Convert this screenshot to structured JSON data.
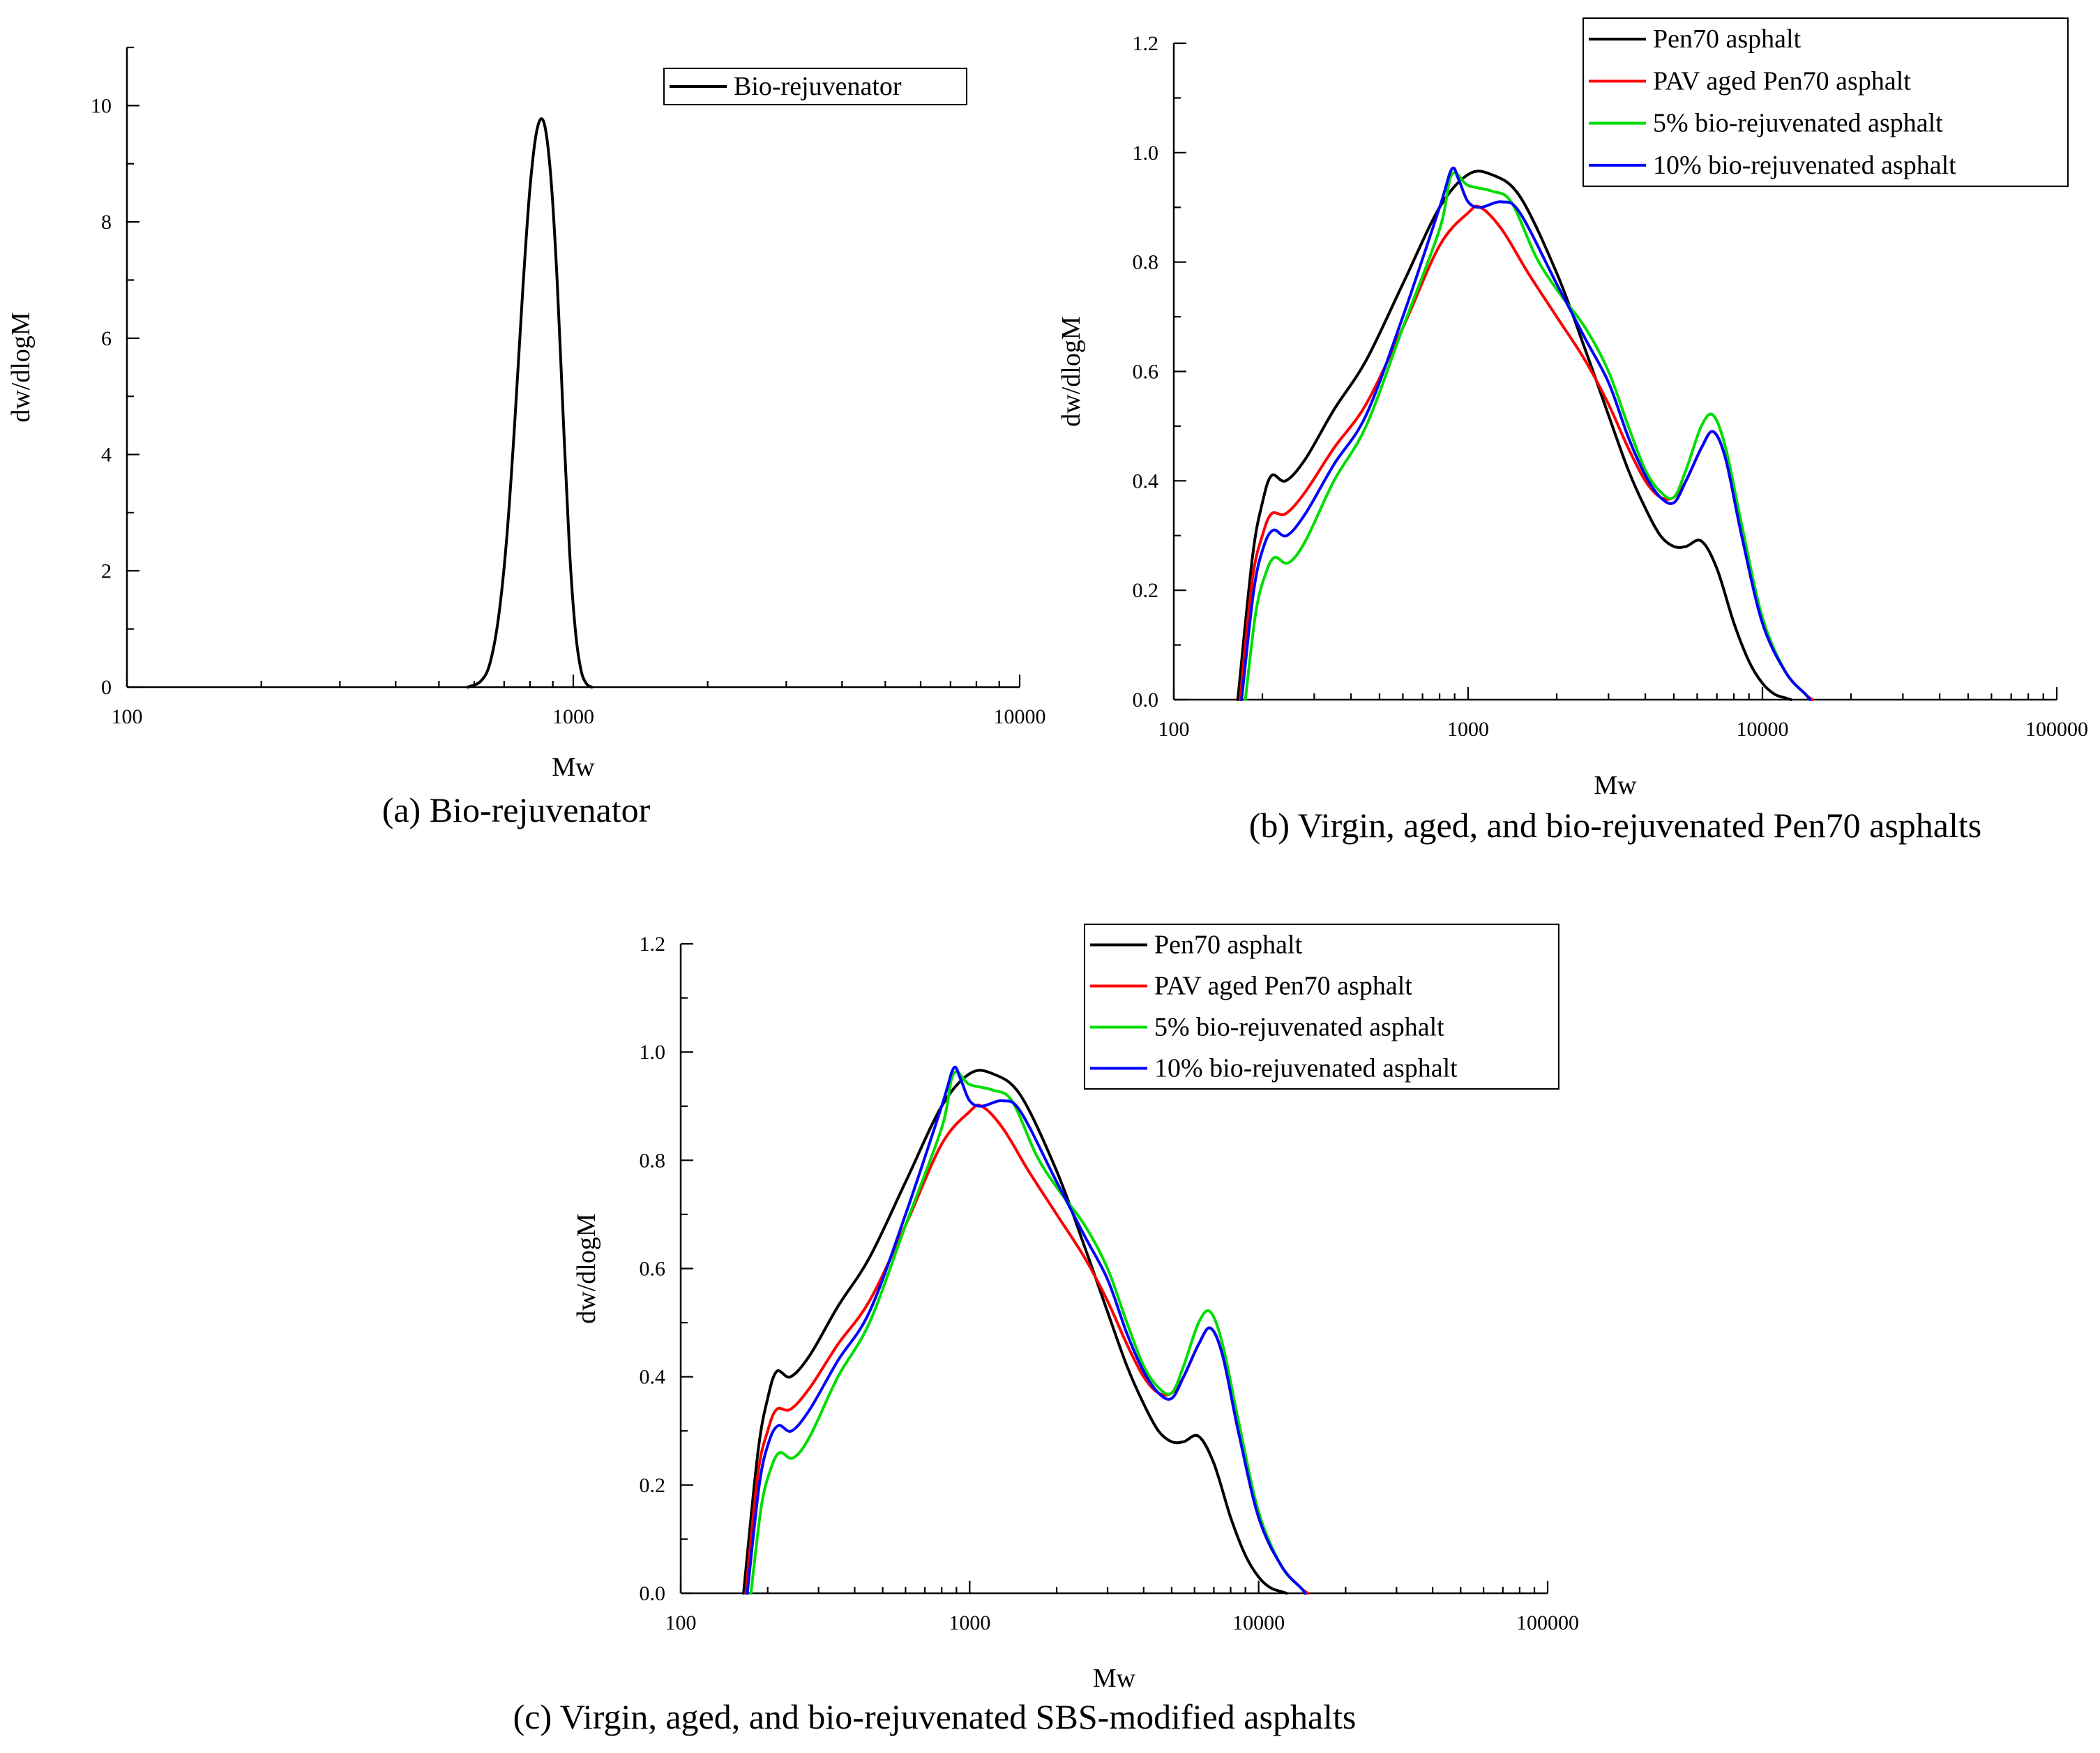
{
  "chart_data": [
    {
      "id": "a",
      "type": "line",
      "caption": "(a)  Bio-rejuvenator",
      "xlabel": "Mw",
      "ylabel": "dw/dlogM",
      "xscale": "log",
      "xlim": [
        100,
        10000
      ],
      "ylim": [
        0,
        11
      ],
      "xticks": [
        100,
        1000,
        10000
      ],
      "xtick_labels": [
        "100",
        "1000",
        "10000"
      ],
      "yticks": [
        0,
        2,
        4,
        6,
        8,
        10
      ],
      "ytick_labels": [
        "0",
        "2",
        "4",
        "6",
        "8",
        "10"
      ],
      "legend_position": "top-right",
      "series": [
        {
          "name": "Bio-rejuvenator",
          "color": "#000000",
          "x": [
            580,
            620,
            650,
            680,
            710,
            740,
            770,
            800,
            830,
            860,
            890,
            920,
            950,
            980,
            1010,
            1040,
            1070,
            1100
          ],
          "y": [
            0,
            0.1,
            0.4,
            1.2,
            2.6,
            4.6,
            6.8,
            8.6,
            9.6,
            9.7,
            8.8,
            7.0,
            4.6,
            2.4,
            1.0,
            0.3,
            0.06,
            0
          ]
        }
      ]
    },
    {
      "id": "b",
      "type": "line",
      "caption": "(b) Virgin, aged, and bio-rejuvenated Pen70 asphalts",
      "xlabel": "Mw",
      "ylabel": "dw/dlogM",
      "xscale": "log",
      "xlim": [
        100,
        100000
      ],
      "ylim": [
        0,
        1.2
      ],
      "xticks": [
        100,
        1000,
        10000,
        100000
      ],
      "xtick_labels": [
        "100",
        "1000",
        "10000",
        "100000"
      ],
      "yticks": [
        0,
        0.2,
        0.4,
        0.6,
        0.8,
        1.0,
        1.2
      ],
      "ytick_labels": [
        "0.0",
        "0.2",
        "0.4",
        "0.6",
        "0.8",
        "1.0",
        "1.2"
      ],
      "legend_position": "top-right",
      "series": [
        {
          "name": "Pen70 asphalt",
          "color": "#000000",
          "x": [
            165,
            185,
            200,
            215,
            240,
            280,
            350,
            450,
            600,
            800,
            1000,
            1200,
            1500,
            2000,
            2500,
            3000,
            3500,
            4000,
            4500,
            5000,
            5500,
            6200,
            7000,
            8000,
            9000,
            10000,
            11000,
            12000,
            12500
          ],
          "y": [
            0,
            0.26,
            0.36,
            0.41,
            0.4,
            0.44,
            0.53,
            0.62,
            0.76,
            0.9,
            0.96,
            0.96,
            0.92,
            0.78,
            0.64,
            0.52,
            0.42,
            0.35,
            0.3,
            0.28,
            0.28,
            0.29,
            0.24,
            0.14,
            0.07,
            0.03,
            0.01,
            0.003,
            0
          ]
        },
        {
          "name": "PAV aged Pen70 asphalt",
          "color": "#ff0000",
          "x": [
            168,
            185,
            200,
            215,
            240,
            280,
            350,
            450,
            600,
            800,
            1000,
            1100,
            1300,
            1600,
            2000,
            2500,
            3000,
            3500,
            4000,
            4500,
            5000,
            5500,
            6200,
            6800,
            7500,
            8500,
            10000,
            12000,
            14000,
            14800
          ],
          "y": [
            0,
            0.22,
            0.3,
            0.34,
            0.34,
            0.38,
            0.46,
            0.54,
            0.68,
            0.83,
            0.89,
            0.9,
            0.86,
            0.78,
            0.7,
            0.62,
            0.54,
            0.46,
            0.4,
            0.37,
            0.37,
            0.4,
            0.46,
            0.49,
            0.44,
            0.3,
            0.14,
            0.05,
            0.01,
            0
          ]
        },
        {
          "name": "5% bio-rejuvenated asphalt",
          "color": "#00dd00",
          "x": [
            175,
            190,
            205,
            220,
            245,
            280,
            350,
            450,
            600,
            800,
            880,
            1000,
            1200,
            1400,
            1700,
            2000,
            2500,
            3000,
            3500,
            4000,
            4500,
            5000,
            5500,
            6200,
            6800,
            7500,
            8500,
            10000,
            12000,
            14000,
            14500
          ],
          "y": [
            0,
            0.16,
            0.23,
            0.26,
            0.25,
            0.29,
            0.4,
            0.5,
            0.68,
            0.86,
            0.96,
            0.94,
            0.93,
            0.91,
            0.81,
            0.75,
            0.68,
            0.6,
            0.5,
            0.42,
            0.38,
            0.37,
            0.42,
            0.5,
            0.52,
            0.46,
            0.32,
            0.15,
            0.05,
            0.01,
            0
          ]
        },
        {
          "name": "10% bio-rejuvenated asphalt",
          "color": "#0000ff",
          "x": [
            170,
            187,
            202,
            218,
            242,
            280,
            350,
            450,
            600,
            800,
            880,
            930,
            1000,
            1100,
            1300,
            1500,
            2000,
            2500,
            3000,
            3500,
            4000,
            4500,
            5000,
            5500,
            6200,
            6800,
            7500,
            8500,
            10000,
            12000,
            14000,
            14500
          ],
          "y": [
            0,
            0.2,
            0.28,
            0.31,
            0.3,
            0.34,
            0.43,
            0.52,
            0.7,
            0.9,
            0.97,
            0.95,
            0.91,
            0.9,
            0.91,
            0.89,
            0.76,
            0.66,
            0.58,
            0.48,
            0.41,
            0.37,
            0.36,
            0.4,
            0.46,
            0.49,
            0.44,
            0.3,
            0.14,
            0.05,
            0.01,
            0
          ]
        }
      ]
    },
    {
      "id": "c",
      "type": "line",
      "caption": "(c) Virgin, aged, and bio-rejuvenated SBS-modified asphalts",
      "xlabel": "Mw",
      "ylabel": "dw/dlogM",
      "xscale": "log",
      "xlim": [
        100,
        100000
      ],
      "ylim": [
        0,
        1.2
      ],
      "xticks": [
        100,
        1000,
        10000,
        100000
      ],
      "xtick_labels": [
        "100",
        "1000",
        "10000",
        "100000"
      ],
      "yticks": [
        0,
        0.2,
        0.4,
        0.6,
        0.8,
        1.0,
        1.2
      ],
      "ytick_labels": [
        "0.0",
        "0.2",
        "0.4",
        "0.6",
        "0.8",
        "1.0",
        "1.2"
      ],
      "legend_position": "top-right",
      "series": [
        {
          "name": "Pen70 asphalt",
          "color": "#000000",
          "x": [
            165,
            185,
            200,
            215,
            240,
            280,
            350,
            450,
            600,
            800,
            1000,
            1200,
            1500,
            2000,
            2500,
            3000,
            3500,
            4000,
            4500,
            5000,
            5500,
            6200,
            7000,
            8000,
            9000,
            10000,
            11000,
            12000,
            12500
          ],
          "y": [
            0,
            0.26,
            0.36,
            0.41,
            0.4,
            0.44,
            0.53,
            0.62,
            0.76,
            0.9,
            0.96,
            0.96,
            0.92,
            0.78,
            0.64,
            0.52,
            0.42,
            0.35,
            0.3,
            0.28,
            0.28,
            0.29,
            0.24,
            0.14,
            0.07,
            0.03,
            0.01,
            0.003,
            0
          ]
        },
        {
          "name": "PAV aged Pen70 asphalt",
          "color": "#ff0000",
          "x": [
            168,
            185,
            200,
            215,
            240,
            280,
            350,
            450,
            600,
            800,
            1000,
            1100,
            1300,
            1600,
            2000,
            2500,
            3000,
            3500,
            4000,
            4500,
            5000,
            5500,
            6200,
            6800,
            7500,
            8500,
            10000,
            12000,
            14000,
            14800
          ],
          "y": [
            0,
            0.22,
            0.3,
            0.34,
            0.34,
            0.38,
            0.46,
            0.54,
            0.68,
            0.83,
            0.89,
            0.9,
            0.86,
            0.78,
            0.7,
            0.62,
            0.54,
            0.46,
            0.4,
            0.37,
            0.37,
            0.4,
            0.46,
            0.49,
            0.44,
            0.3,
            0.14,
            0.05,
            0.01,
            0
          ]
        },
        {
          "name": "5% bio-rejuvenated asphalt",
          "color": "#00dd00",
          "x": [
            175,
            190,
            205,
            220,
            245,
            280,
            350,
            450,
            600,
            800,
            880,
            1000,
            1200,
            1400,
            1700,
            2000,
            2500,
            3000,
            3500,
            4000,
            4500,
            5000,
            5500,
            6200,
            6800,
            7500,
            8500,
            10000,
            12000,
            14000,
            14500
          ],
          "y": [
            0,
            0.16,
            0.23,
            0.26,
            0.25,
            0.29,
            0.4,
            0.5,
            0.68,
            0.86,
            0.96,
            0.94,
            0.93,
            0.91,
            0.81,
            0.75,
            0.68,
            0.6,
            0.5,
            0.42,
            0.38,
            0.37,
            0.42,
            0.5,
            0.52,
            0.46,
            0.32,
            0.15,
            0.05,
            0.01,
            0
          ]
        },
        {
          "name": "10% bio-rejuvenated asphalt",
          "color": "#0000ff",
          "x": [
            170,
            187,
            202,
            218,
            242,
            280,
            350,
            450,
            600,
            800,
            880,
            930,
            1000,
            1100,
            1300,
            1500,
            2000,
            2500,
            3000,
            3500,
            4000,
            4500,
            5000,
            5500,
            6200,
            6800,
            7500,
            8500,
            10000,
            12000,
            14000,
            14500
          ],
          "y": [
            0,
            0.2,
            0.28,
            0.31,
            0.3,
            0.34,
            0.43,
            0.52,
            0.7,
            0.9,
            0.97,
            0.95,
            0.91,
            0.9,
            0.91,
            0.89,
            0.76,
            0.66,
            0.58,
            0.48,
            0.41,
            0.37,
            0.36,
            0.4,
            0.46,
            0.49,
            0.44,
            0.3,
            0.14,
            0.05,
            0.01,
            0
          ]
        }
      ]
    }
  ]
}
